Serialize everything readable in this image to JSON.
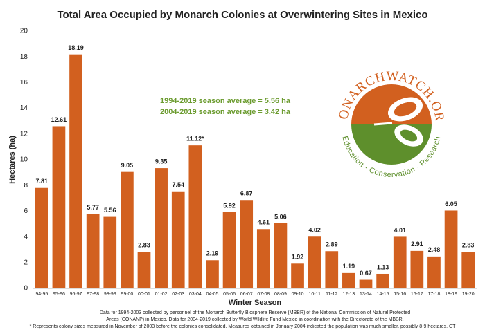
{
  "chart_data": {
    "type": "bar",
    "title": "Total Area Occupied by Monarch Colonies at Overwintering Sites in Mexico",
    "x_label": "Winter Season",
    "y_label": "Hectares (ha)",
    "categories": [
      "94-95",
      "95-96",
      "96-97",
      "97-98",
      "98-99",
      "99-00",
      "00-01",
      "01-02",
      "02-03",
      "03-04",
      "04-05",
      "05-06",
      "06-07",
      "07-08",
      "08-09",
      "09-10",
      "10-11",
      "11-12",
      "12-13",
      "13-14",
      "14-15",
      "15-16",
      "16-17",
      "17-18",
      "18-19",
      "19-20"
    ],
    "values": [
      7.81,
      12.61,
      18.19,
      5.77,
      5.56,
      9.05,
      2.83,
      9.35,
      7.54,
      11.12,
      2.19,
      5.92,
      6.87,
      4.61,
      5.06,
      1.92,
      4.02,
      2.89,
      1.19,
      0.67,
      1.13,
      4.01,
      2.91,
      2.48,
      6.05,
      2.83
    ],
    "value_labels": [
      "7.81",
      "12.61",
      "18.19",
      "5.77",
      "5.56",
      "9.05",
      "2.83",
      "9.35",
      "7.54",
      "11.12*",
      "2.19",
      "5.92",
      "6.87",
      "4.61",
      "5.06",
      "1.92",
      "4.02",
      "2.89",
      "1.19",
      "0.67",
      "1.13",
      "4.01",
      "2.91",
      "2.48",
      "6.05",
      "2.83"
    ],
    "color": "#d2601f",
    "ylim": [
      0,
      20
    ],
    "yticks": [
      0,
      2,
      4,
      6,
      8,
      10,
      12,
      14,
      16,
      18,
      20
    ],
    "grid": false,
    "annotations": [
      "1994-2019 season average = 5.56 ha",
      "2004-2019 season average = 3.42 ha"
    ],
    "logo_name": "MONARCHWATCH.ORG",
    "logo_tagline": "Education · Conservation · Research",
    "notes": [
      "Data for 1994-2003 collected by personnel of the Monarch Butterfly Biosphere Reserve (MBBR) of the National Commission of Natural Protected",
      "Areas (CONANP) in Mexico. Data for 2004-2019 collected by World Wildlife Fund Mexico in coordination with the Directorate of the MBBR.",
      "* Represents colony sizes measured in November of 2003 before the colonies consolidated. Measures obtained in January 2004 indicated the population was much smaller, possibly 8-9 hectares. CT"
    ]
  }
}
